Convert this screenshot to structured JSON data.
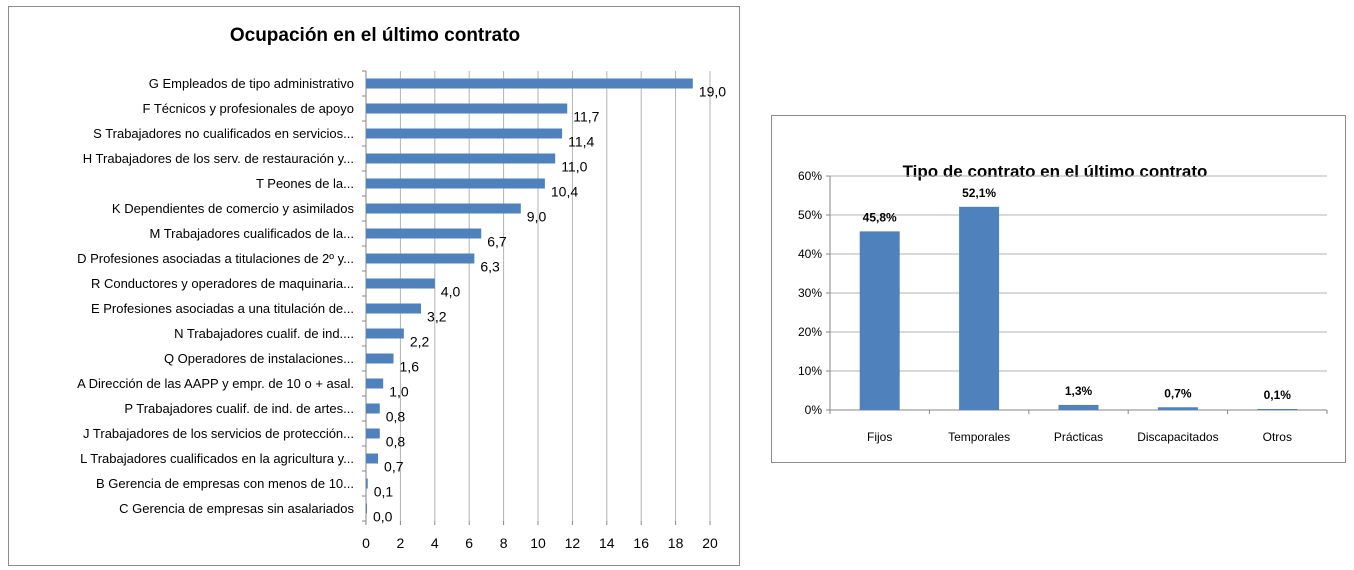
{
  "chart_data": [
    {
      "type": "bar",
      "orientation": "horizontal",
      "title": "Ocupación en el último contrato",
      "categories": [
        "G Empleados  de tipo administrativo",
        "F Técnicos y profesionales de apoyo",
        "S Trabajadores  no cualificados en servicios...",
        "H Trabajadores de los serv. de restauración y...",
        "T Peones de la...",
        "K Dependientes de comercio y asimilados",
        "M Trabajadores cualificados de la...",
        "D Profesiones asociadas a titulaciones de 2º y...",
        "R Conductores y operadores de maquinaria...",
        "E Profesiones asociadas a una titulación de...",
        "N Trabajadores  cualif. de ind....",
        "Q Operadores de instalaciones...",
        "A Dirección de las AAPP y empr. de 10 o + asal.",
        "P Trabajadores cualif. de ind. de artes...",
        "J Trabajadores de los servicios de protección...",
        "L Trabajadores cualificados en la agricultura y...",
        "B Gerencia de empresas con menos de 10...",
        "C Gerencia de empresas sin asalariados"
      ],
      "values": [
        19.0,
        11.7,
        11.4,
        11.0,
        10.4,
        9.0,
        6.7,
        6.3,
        4.0,
        3.2,
        2.2,
        1.6,
        1.0,
        0.8,
        0.8,
        0.7,
        0.1,
        0.0
      ],
      "value_labels": [
        "19,0",
        "11,7",
        "11,4",
        "11,0",
        "10,4",
        "9,0",
        "6,7",
        "6,3",
        "4,0",
        "3,2",
        "2,2",
        "1,6",
        "1,0",
        "0,8",
        "0,8",
        "0,7",
        "0,1",
        "0,0"
      ],
      "xlim": [
        0,
        20
      ],
      "xticks": [
        "0",
        "2",
        "4",
        "6",
        "8",
        "10",
        "12",
        "14",
        "16",
        "18",
        "20"
      ],
      "grid": "vertical",
      "bar_color": "#4f81bd"
    },
    {
      "type": "bar",
      "title": "Tipo de contrato en el último contrato",
      "categories": [
        "Fijos",
        "Temporales",
        "Prácticas",
        "Discapacitados",
        "Otros"
      ],
      "values": [
        45.8,
        52.1,
        1.3,
        0.7,
        0.1
      ],
      "value_labels": [
        "45,8%",
        "52,1%",
        "1,3%",
        "0,7%",
        "0,1%"
      ],
      "ylim": [
        0,
        60
      ],
      "yticks": [
        "0%",
        "10%",
        "20%",
        "30%",
        "40%",
        "50%",
        "60%"
      ],
      "grid": "horizontal",
      "bar_color": "#4f81bd"
    }
  ]
}
